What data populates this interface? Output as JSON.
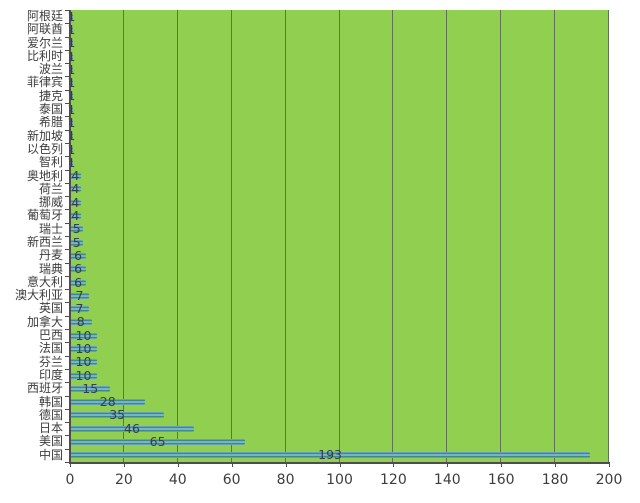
{
  "chart_data": {
    "type": "bar",
    "orientation": "horizontal",
    "title": "",
    "xlabel": "",
    "ylabel": "",
    "xlim": [
      0,
      200
    ],
    "x_ticks": [
      0,
      20,
      40,
      60,
      80,
      100,
      120,
      140,
      160,
      180,
      200
    ],
    "grid": true,
    "legend": false,
    "data_labels": true,
    "categories": [
      "阿根廷",
      "阿联酋",
      "爱尔兰",
      "比利时",
      "波兰",
      "菲律宾",
      "捷克",
      "泰国",
      "希腊",
      "新加坡",
      "以色列",
      "智利",
      "奥地利",
      "荷兰",
      "挪威",
      "葡萄牙",
      "瑞士",
      "新西兰",
      "丹麦",
      "瑞典",
      "意大利",
      "澳大利亚",
      "英国",
      "加拿大",
      "巴西",
      "法国",
      "芬兰",
      "印度",
      "西班牙",
      "韩国",
      "德国",
      "日本",
      "美国",
      "中国"
    ],
    "values": [
      1,
      1,
      1,
      1,
      1,
      1,
      1,
      1,
      1,
      1,
      1,
      1,
      4,
      4,
      4,
      4,
      5,
      5,
      6,
      6,
      6,
      7,
      7,
      8,
      10,
      10,
      10,
      10,
      15,
      28,
      35,
      46,
      65,
      193
    ]
  },
  "colors": {
    "page_background": "#FFFFFF",
    "plot_background": "#90CF4F",
    "bar_dark": "#2F7A8C",
    "bar_mid": "#9CCFD4",
    "bar_highlight": "#7FB9C6",
    "gridline": "#5F7350",
    "axis": "#4D4D4D",
    "data_label_text": "#333F48",
    "tick_label_text": "#3D3D3D"
  }
}
